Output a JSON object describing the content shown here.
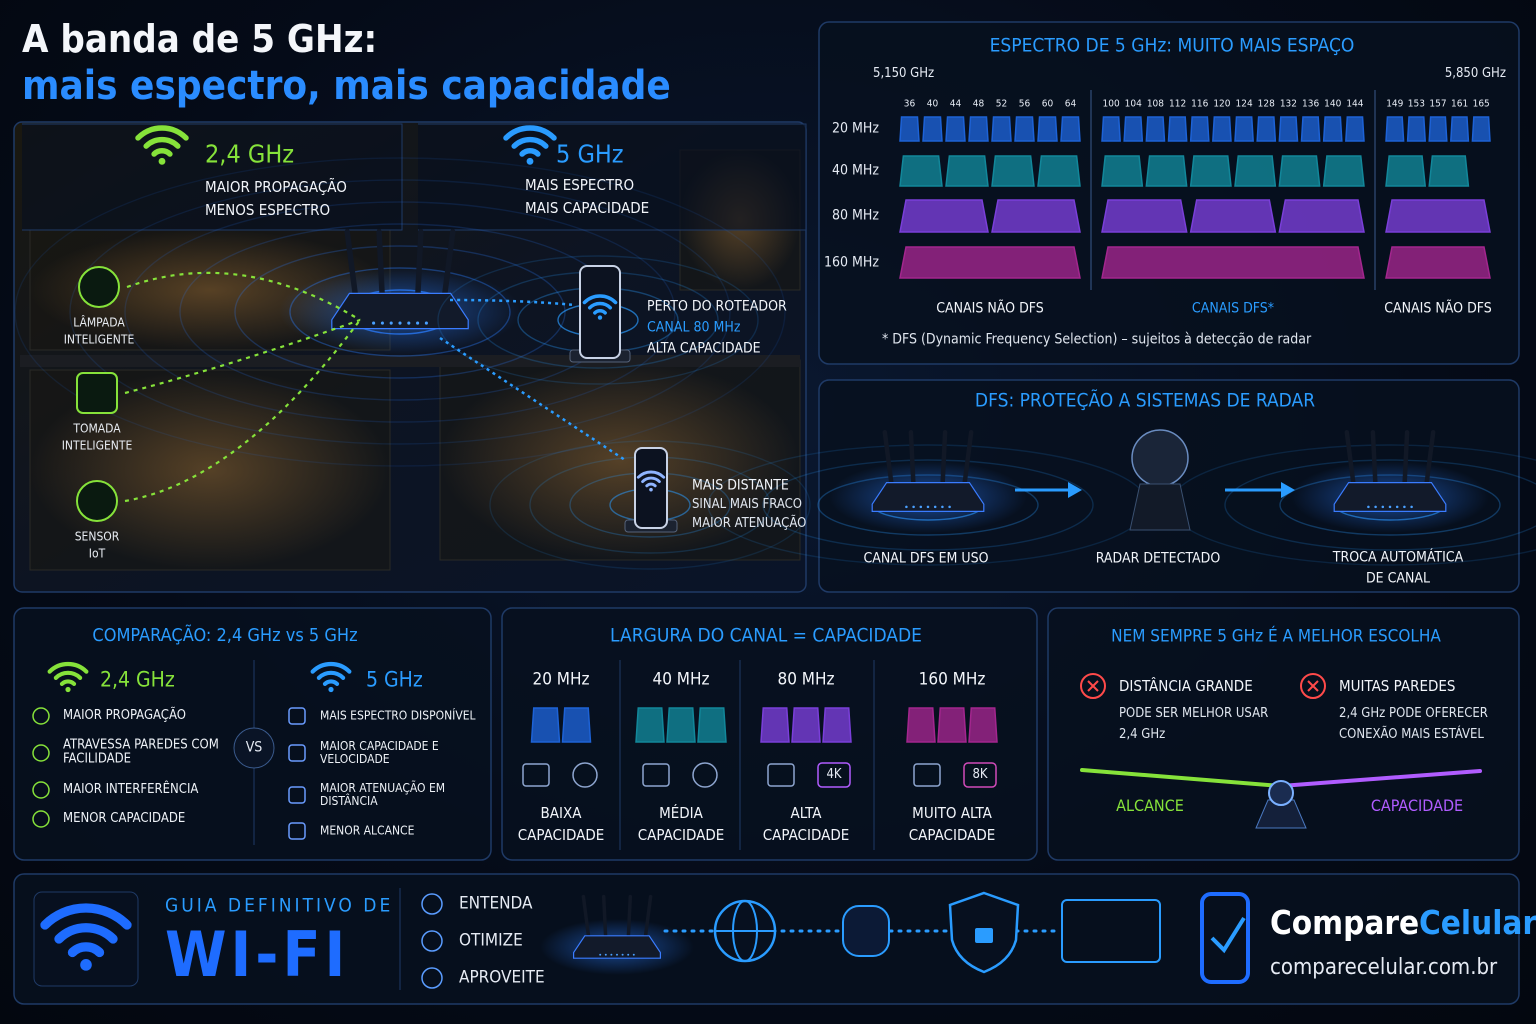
{
  "header": {
    "title": "A banda de 5 GHz:",
    "subtitle": "mais espectro, mais capacidade"
  },
  "house": {
    "band24": {
      "title": "2,4 GHz",
      "lines": [
        "MAIOR PROPAGAÇÃO",
        "MENOS ESPECTRO"
      ]
    },
    "band5": {
      "title": "5 GHz",
      "lines": [
        "MAIS ESPECTRO",
        "MAIS CAPACIDADE"
      ]
    },
    "devices": [
      {
        "lines": [
          "LÂMPADA",
          "INTELIGENTE"
        ]
      },
      {
        "lines": [
          "TOMADA",
          "INTELIGENTE"
        ]
      },
      {
        "lines": [
          "SENSOR",
          "IoT"
        ]
      }
    ],
    "near": {
      "lines": [
        "PERTO DO ROTEADOR",
        "CANAL 80 MHz",
        "ALTA CAPACIDADE"
      ]
    },
    "far": {
      "lines": [
        "MAIS DISTANTE",
        "SINAL MAIS FRACO",
        "MAIOR ATENUAÇÃO"
      ]
    }
  },
  "spectrum": {
    "title": "ESPECTRO DE 5 GHz: MUITO MAIS ESPAÇO",
    "start_label": "5,150 GHz",
    "end_label": "5,850 GHz",
    "widths": [
      "20 MHz",
      "40 MHz",
      "80 MHz",
      "160 MHz"
    ],
    "width_colors": [
      "#1d62d6",
      "#12879a",
      "#7a3fd9",
      "#a3268e"
    ],
    "groups": [
      {
        "channels": [
          36,
          40,
          44,
          48,
          52,
          56,
          60,
          64
        ],
        "label": "CANAIS NÃO DFS"
      },
      {
        "channels": [
          100,
          104,
          108,
          112,
          116,
          120,
          124,
          128,
          132,
          136,
          140,
          144
        ],
        "label": "CANAIS DFS*"
      },
      {
        "channels": [
          149,
          153,
          157,
          161,
          165
        ],
        "label": "CANAIS NÃO DFS"
      }
    ],
    "footnote": "* DFS (Dynamic Frequency Selection) – sujeitos à detecção de radar"
  },
  "dfs": {
    "title": "DFS: PROTEÇÃO A SISTEMAS DE RADAR",
    "steps": [
      {
        "lines": [
          "CANAL DFS EM USO"
        ]
      },
      {
        "lines": [
          "RADAR DETECTADO"
        ]
      },
      {
        "lines": [
          "TROCA AUTOMÁTICA",
          "DE CANAL"
        ]
      }
    ]
  },
  "comparison": {
    "title": "COMPARAÇÃO: 2,4 GHz vs 5 GHz",
    "vs": "VS",
    "left": {
      "title": "2,4 GHz",
      "items": [
        "MAIOR PROPAGAÇÃO",
        "ATRAVESSA PAREDES COM FACILIDADE",
        "MAIOR INTERFERÊNCIA",
        "MENOR CAPACIDADE"
      ]
    },
    "right": {
      "title": "5 GHz",
      "items": [
        "MAIS ESPECTRO DISPONÍVEL",
        "MAIOR CAPACIDADE E VELOCIDADE",
        "MAIOR ATENUAÇÃO EM DISTÂNCIA",
        "MENOR ALCANCE"
      ]
    }
  },
  "channel_width": {
    "title": "LARGURA DO CANAL = CAPACIDADE",
    "columns": [
      {
        "width": "20 MHz",
        "capacity": [
          "BAIXA",
          "CAPACIDADE"
        ]
      },
      {
        "width": "40 MHz",
        "capacity": [
          "MÉDIA",
          "CAPACIDADE"
        ]
      },
      {
        "width": "80 MHz",
        "badge": "4K",
        "capacity": [
          "ALTA",
          "CAPACIDADE"
        ]
      },
      {
        "width": "160 MHz",
        "badge": "8K",
        "capacity": [
          "MUITO ALTA",
          "CAPACIDADE"
        ]
      }
    ]
  },
  "choice": {
    "title": "NEM SEMPRE 5 GHz É A MELHOR ESCOLHA",
    "items": [
      {
        "title": "DISTÂNCIA GRANDE",
        "lines": [
          "PODE SER MELHOR USAR",
          "2,4 GHz"
        ]
      },
      {
        "title": "MUITAS PAREDES",
        "lines": [
          "2,4 GHz PODE OFERECER",
          "CONEXÃO MAIS ESTÁVEL"
        ]
      }
    ],
    "left_label": "ALCANCE",
    "right_label": "CAPACIDADE"
  },
  "footer": {
    "guide_small": "GUIA DEFINITIVO DE",
    "guide_big": "WI-FI",
    "steps": [
      "ENTENDA",
      "OTIMIZE",
      "APROVEITE"
    ],
    "brand_a": "Compare",
    "brand_b": "Celular",
    "url": "comparecelular.com.br"
  }
}
